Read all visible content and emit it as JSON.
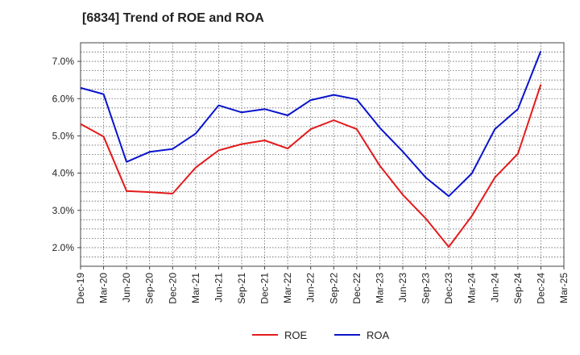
{
  "chart_data": {
    "type": "line",
    "title": "[6834]  Trend of ROE and ROA",
    "xlabel": "",
    "ylabel": "",
    "x": [
      "Dec-19",
      "Mar-20",
      "Jun-20",
      "Sep-20",
      "Dec-20",
      "Mar-21",
      "Jun-21",
      "Sep-21",
      "Dec-21",
      "Mar-22",
      "Jun-22",
      "Sep-22",
      "Dec-22",
      "Mar-23",
      "Jun-23",
      "Sep-23",
      "Dec-23",
      "Mar-24",
      "Jun-24",
      "Sep-24",
      "Dec-24",
      "Mar-25"
    ],
    "y_ticks": [
      "2.0%",
      "3.0%",
      "4.0%",
      "5.0%",
      "6.0%",
      "7.0%"
    ],
    "y_tick_values": [
      2,
      3,
      4,
      5,
      6,
      7
    ],
    "ylim": [
      1.5,
      7.5
    ],
    "grid": true,
    "legend_position": "bottom-center",
    "series": [
      {
        "name": "ROE",
        "color": "#e31a1c",
        "values": [
          5.32,
          4.98,
          3.52,
          3.49,
          3.45,
          4.15,
          4.61,
          4.78,
          4.88,
          4.66,
          5.18,
          5.42,
          5.18,
          4.2,
          3.42,
          2.78,
          2.02,
          2.85,
          3.88,
          4.52,
          6.38,
          null
        ]
      },
      {
        "name": "ROA",
        "color": "#0a14cc",
        "values": [
          6.29,
          6.12,
          4.3,
          4.57,
          4.65,
          5.06,
          5.82,
          5.63,
          5.72,
          5.55,
          5.96,
          6.1,
          5.98,
          5.22,
          4.58,
          3.88,
          3.38,
          3.99,
          5.18,
          5.72,
          7.28,
          null
        ]
      }
    ]
  }
}
